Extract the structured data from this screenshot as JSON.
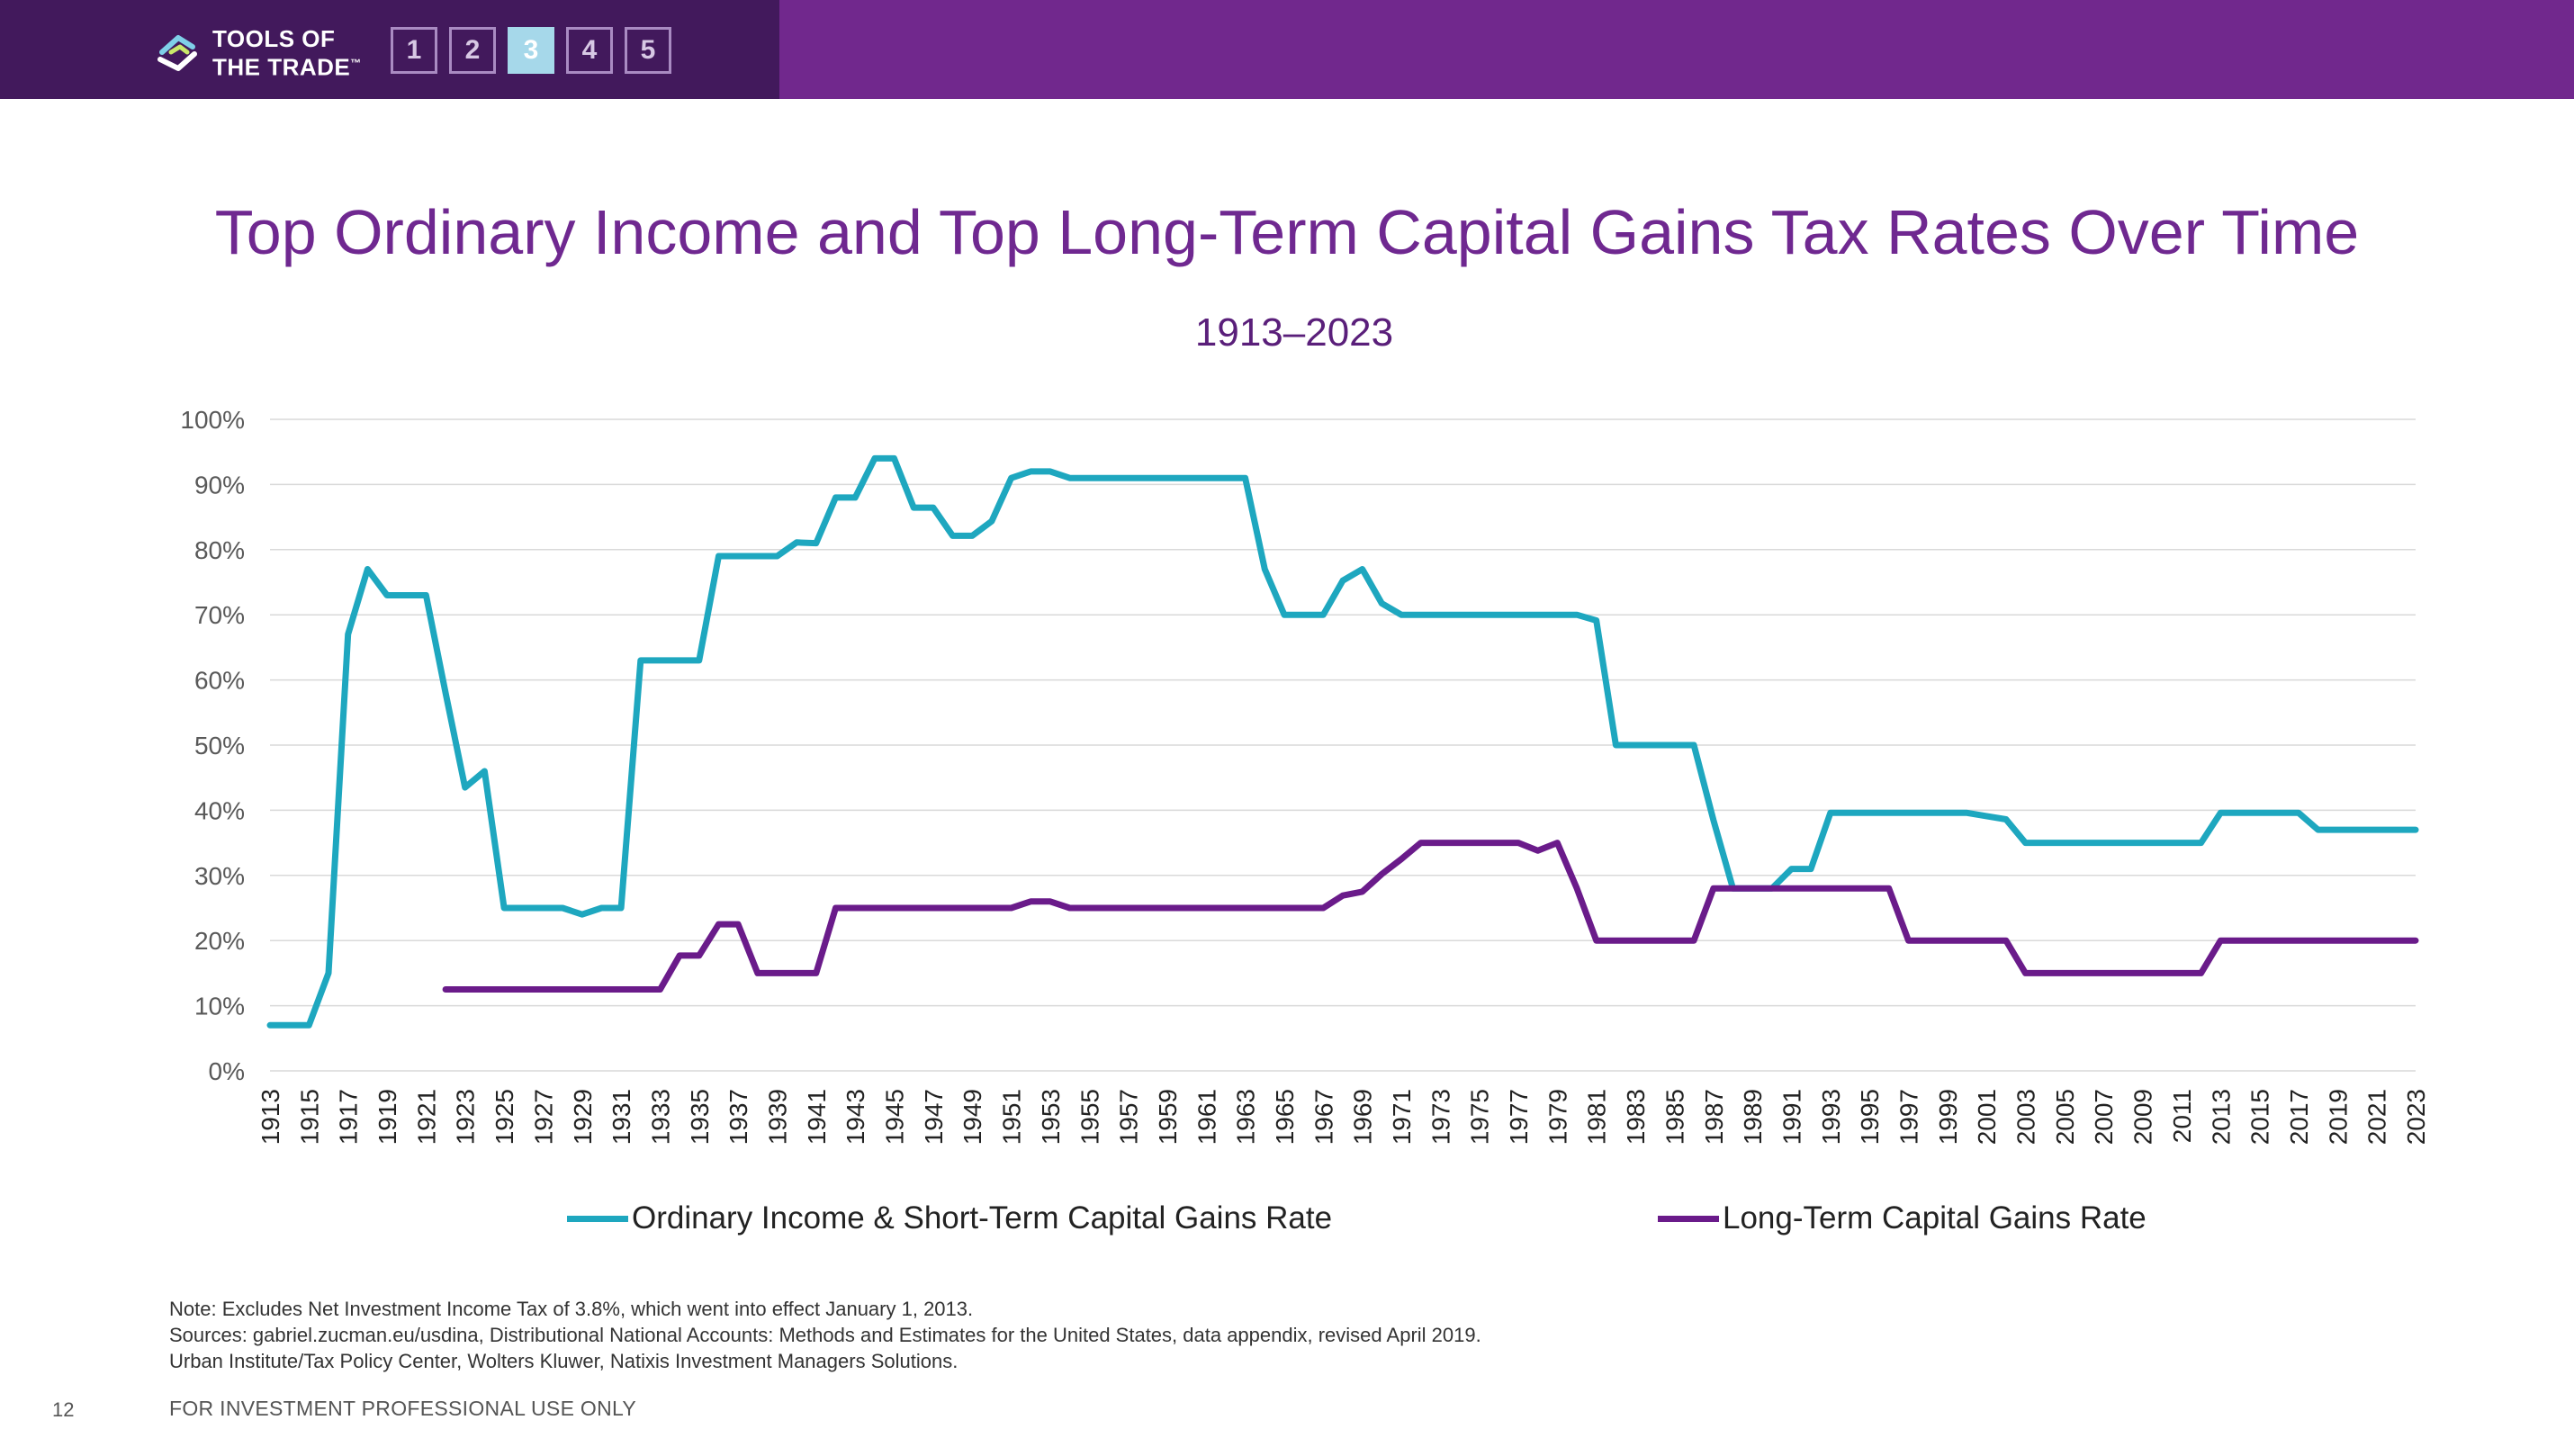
{
  "header": {
    "brand_line1": "TOOLS OF",
    "brand_line2": "THE TRADE",
    "brand_mark": "™",
    "nav": [
      {
        "label": "1",
        "active": false
      },
      {
        "label": "2",
        "active": false
      },
      {
        "label": "3",
        "active": true
      },
      {
        "label": "4",
        "active": false
      },
      {
        "label": "5",
        "active": false
      }
    ],
    "colors": {
      "bar": "#71288d",
      "bar_dark": "#42195c",
      "active_box": "#a6d8ea"
    }
  },
  "chart_data": {
    "type": "line",
    "title": "Top Ordinary Income and Top Long-Term Capital Gains Tax Rates Over Time",
    "subtitle": "1913–2023",
    "x_start": 1913,
    "x_end": 2023,
    "x_tick_labels": [
      "1913",
      "1915",
      "1917",
      "1919",
      "1921",
      "1923",
      "1925",
      "1927",
      "1929",
      "1931",
      "1933",
      "1935",
      "1937",
      "1939",
      "1941",
      "1943",
      "1945",
      "1947",
      "1949",
      "1951",
      "1953",
      "1955",
      "1957",
      "1959",
      "1961",
      "1963",
      "1965",
      "1967",
      "1969",
      "1971",
      "1973",
      "1975",
      "1977",
      "1979",
      "1981",
      "1983",
      "1985",
      "1987",
      "1989",
      "1991",
      "1993",
      "1995",
      "1997",
      "1999",
      "2001",
      "2003",
      "2005",
      "2007",
      "2009",
      "2011",
      "2013",
      "2015",
      "2017",
      "2019",
      "2021",
      "2023"
    ],
    "y_tick_labels": [
      "0%",
      "10%",
      "20%",
      "30%",
      "40%",
      "50%",
      "60%",
      "70%",
      "80%",
      "90%",
      "100%"
    ],
    "ylim": [
      0,
      100
    ],
    "grid": true,
    "legend_position": "bottom",
    "series": [
      {
        "name": "Ordinary Income & Short-Term Capital Gains Rate",
        "color": "#1ea7bf",
        "points": [
          [
            1913,
            7
          ],
          [
            1915,
            7
          ],
          [
            1916,
            15
          ],
          [
            1917,
            67
          ],
          [
            1918,
            77
          ],
          [
            1919,
            73
          ],
          [
            1920,
            73
          ],
          [
            1921,
            73
          ],
          [
            1922,
            58
          ],
          [
            1923,
            43.5
          ],
          [
            1924,
            46
          ],
          [
            1925,
            25
          ],
          [
            1926,
            25
          ],
          [
            1927,
            25
          ],
          [
            1928,
            25
          ],
          [
            1929,
            24
          ],
          [
            1930,
            25
          ],
          [
            1931,
            25
          ],
          [
            1932,
            63
          ],
          [
            1933,
            63
          ],
          [
            1934,
            63
          ],
          [
            1935,
            63
          ],
          [
            1936,
            79
          ],
          [
            1937,
            79
          ],
          [
            1938,
            79
          ],
          [
            1939,
            79
          ],
          [
            1940,
            81.1
          ],
          [
            1941,
            81
          ],
          [
            1942,
            88
          ],
          [
            1943,
            88
          ],
          [
            1944,
            94
          ],
          [
            1945,
            94
          ],
          [
            1946,
            86.45
          ],
          [
            1947,
            86.45
          ],
          [
            1948,
            82.13
          ],
          [
            1949,
            82.13
          ],
          [
            1950,
            84.36
          ],
          [
            1951,
            91
          ],
          [
            1952,
            92
          ],
          [
            1953,
            92
          ],
          [
            1954,
            91
          ],
          [
            1962,
            91
          ],
          [
            1963,
            91
          ],
          [
            1964,
            77
          ],
          [
            1965,
            70
          ],
          [
            1966,
            70
          ],
          [
            1967,
            70
          ],
          [
            1968,
            75.25
          ],
          [
            1969,
            77
          ],
          [
            1970,
            71.75
          ],
          [
            1971,
            70
          ],
          [
            1980,
            70
          ],
          [
            1981,
            69.13
          ],
          [
            1982,
            50
          ],
          [
            1983,
            50
          ],
          [
            1984,
            50
          ],
          [
            1985,
            50
          ],
          [
            1986,
            50
          ],
          [
            1987,
            38.5
          ],
          [
            1988,
            28
          ],
          [
            1989,
            28
          ],
          [
            1990,
            28
          ],
          [
            1991,
            31
          ],
          [
            1992,
            31
          ],
          [
            1993,
            39.6
          ],
          [
            2000,
            39.6
          ],
          [
            2001,
            39.1
          ],
          [
            2002,
            38.6
          ],
          [
            2003,
            35
          ],
          [
            2012,
            35
          ],
          [
            2013,
            39.6
          ],
          [
            2017,
            39.6
          ],
          [
            2018,
            37
          ],
          [
            2023,
            37
          ]
        ]
      },
      {
        "name": "Long-Term Capital Gains Rate",
        "color": "#6a1b8a",
        "points": [
          [
            1922,
            12.5
          ],
          [
            1933,
            12.5
          ],
          [
            1934,
            17.7
          ],
          [
            1935,
            17.7
          ],
          [
            1936,
            22.5
          ],
          [
            1937,
            22.5
          ],
          [
            1938,
            15
          ],
          [
            1941,
            15
          ],
          [
            1942,
            25
          ],
          [
            1951,
            25
          ],
          [
            1952,
            26
          ],
          [
            1953,
            26
          ],
          [
            1954,
            25
          ],
          [
            1967,
            25
          ],
          [
            1968,
            26.9
          ],
          [
            1969,
            27.5
          ],
          [
            1970,
            30.2
          ],
          [
            1971,
            32.5
          ],
          [
            1972,
            35
          ],
          [
            1977,
            35
          ],
          [
            1978,
            33.8
          ],
          [
            1979,
            35
          ],
          [
            1980,
            28
          ],
          [
            1981,
            20
          ],
          [
            1986,
            20
          ],
          [
            1987,
            28
          ],
          [
            1996,
            28
          ],
          [
            1997,
            20
          ],
          [
            2002,
            20
          ],
          [
            2003,
            15
          ],
          [
            2012,
            15
          ],
          [
            2013,
            20
          ],
          [
            2023,
            20
          ]
        ]
      }
    ]
  },
  "notes": {
    "line1": "Note: Excludes Net Investment Income Tax of 3.8%, which went into effect January 1, 2013.",
    "line2": "Sources: gabriel.zucman.eu/usdina, Distributional National Accounts: Methods and Estimates for the United States, data appendix, revised April 2019.",
    "line3": "Urban Institute/Tax Policy Center, Wolters Kluwer, Natixis Investment Managers Solutions."
  },
  "footer": {
    "page_number": "12",
    "disclaimer": "FOR INVESTMENT PROFESSIONAL USE ONLY"
  }
}
